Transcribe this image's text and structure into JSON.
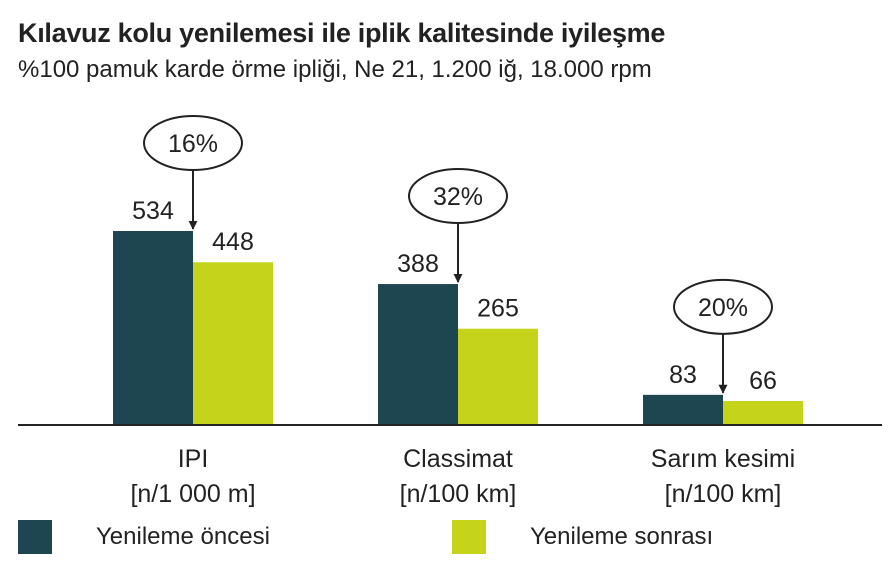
{
  "chart_data": {
    "type": "bar",
    "title": "Kılavuz kolu yenilemesi ile iplik kalitesinde iyileşme",
    "subtitle": "%100 pamuk karde örme ipliği, Ne 21, 1.200 iğ, 18.000 rpm",
    "categories": [
      {
        "name": "IPI",
        "unit": "[n/1 000 m]"
      },
      {
        "name": "Classimat",
        "unit": "[n/100 km]"
      },
      {
        "name": "Sarım kesimi",
        "unit": "[n/100 km]"
      }
    ],
    "series": [
      {
        "name": "Yenileme öncesi",
        "color": "#1e4650",
        "values": [
          534,
          388,
          83
        ]
      },
      {
        "name": "Yenileme sonrası",
        "color": "#c5d31a",
        "values": [
          448,
          265,
          66
        ]
      }
    ],
    "value_labels": [
      [
        "534",
        "448"
      ],
      [
        "388",
        "265"
      ],
      [
        "83",
        "66"
      ]
    ],
    "improvements": [
      "16%",
      "32%",
      "20%"
    ],
    "ylim": [
      0,
      534
    ],
    "xlabel": "",
    "ylabel": "",
    "grid": false,
    "legend": "bottom"
  }
}
